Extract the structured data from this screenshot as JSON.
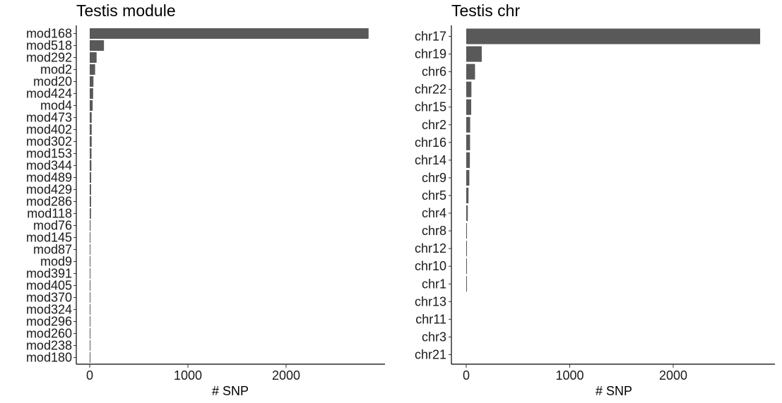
{
  "chart_data": [
    {
      "type": "bar",
      "orientation": "horizontal",
      "title": "Testis module",
      "xlabel": "# SNP",
      "ylabel": "",
      "xlim": [
        0,
        2850
      ],
      "xticks": [
        0,
        1000,
        2000
      ],
      "grid": false,
      "categories": [
        "mod168",
        "mod518",
        "mod292",
        "mod2",
        "mod20",
        "mod424",
        "mod4",
        "mod473",
        "mod402",
        "mod302",
        "mod153",
        "mod344",
        "mod489",
        "mod429",
        "mod286",
        "mod118",
        "mod76",
        "mod145",
        "mod87",
        "mod9",
        "mod391",
        "mod405",
        "mod370",
        "mod324",
        "mod296",
        "mod260",
        "mod238",
        "mod180"
      ],
      "values": [
        2840,
        145,
        70,
        55,
        38,
        35,
        30,
        20,
        20,
        20,
        18,
        17,
        15,
        14,
        14,
        13,
        8,
        7,
        7,
        7,
        6,
        6,
        6,
        6,
        5,
        5,
        5,
        5
      ]
    },
    {
      "type": "bar",
      "orientation": "horizontal",
      "title": "Testis chr",
      "xlabel": "# SNP",
      "ylabel": "",
      "xlim": [
        0,
        2850
      ],
      "xticks": [
        0,
        1000,
        2000
      ],
      "grid": false,
      "categories": [
        "chr17",
        "chr19",
        "chr6",
        "chr22",
        "chr15",
        "chr2",
        "chr16",
        "chr14",
        "chr9",
        "chr5",
        "chr4",
        "chr8",
        "chr12",
        "chr10",
        "chr1",
        "chr13",
        "chr11",
        "chr3",
        "chr21"
      ],
      "values": [
        2840,
        150,
        85,
        50,
        48,
        38,
        37,
        35,
        30,
        22,
        15,
        7,
        6,
        6,
        5,
        0,
        0,
        0,
        0
      ]
    }
  ]
}
